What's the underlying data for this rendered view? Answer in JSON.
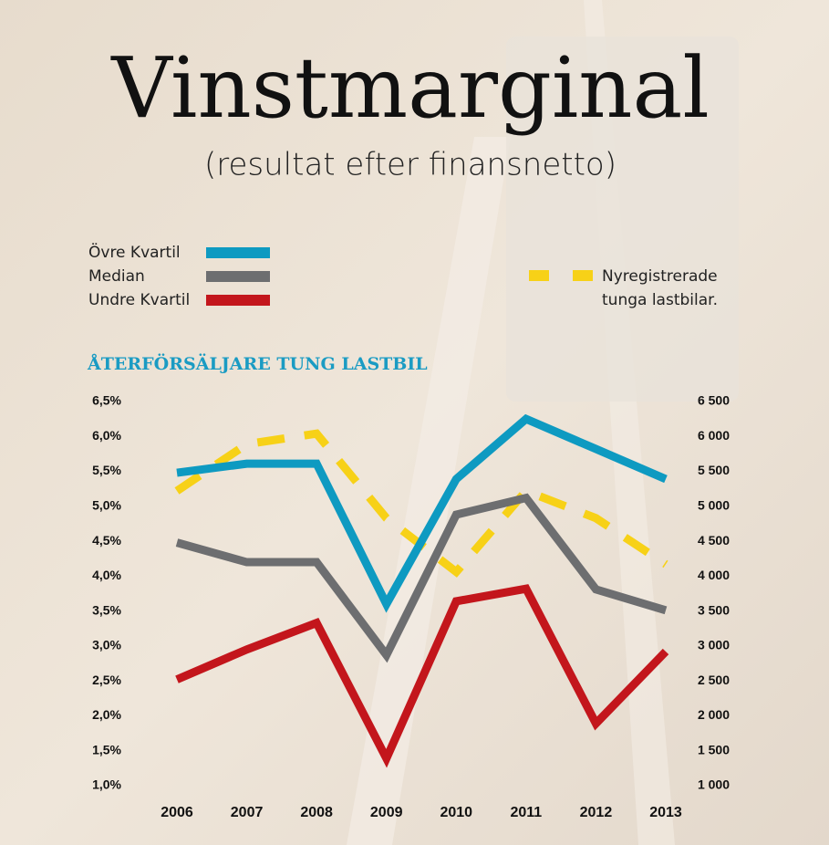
{
  "chart_data": {
    "type": "line",
    "title": "Vinstmarginal",
    "subtitle": "(resultat efter finansnetto)",
    "chart_title": "ÅTERFÖRSÄLJARE TUNG LASTBIL",
    "categories": [
      "2006",
      "2007",
      "2008",
      "2009",
      "2010",
      "2011",
      "2012",
      "2013"
    ],
    "series": [
      {
        "name": "Övre Kvartil",
        "color": "#0e9ac1",
        "style": "solid",
        "values": [
          5.48,
          5.61,
          5.61,
          3.6,
          5.39,
          6.25,
          5.82,
          5.39
        ]
      },
      {
        "name": "Median",
        "color": "#6d6e70",
        "style": "solid",
        "values": [
          4.48,
          4.2,
          4.2,
          2.87,
          4.88,
          5.12,
          3.81,
          3.51
        ]
      },
      {
        "name": "Undre Kvartil",
        "color": "#c3161c",
        "style": "solid",
        "values": [
          2.52,
          2.95,
          3.33,
          1.39,
          3.64,
          3.82,
          1.89,
          2.92
        ]
      },
      {
        "name": "Nyregistrerade tunga lastbilar.",
        "color": "#f7d117",
        "style": "dashed",
        "axis": "y2",
        "values": [
          5220,
          5890,
          6040,
          4830,
          4060,
          5220,
          4830,
          4170
        ]
      }
    ],
    "ylim": [
      1.0,
      6.5
    ],
    "yticks": [
      {
        "value": 1.0,
        "label": "1,0%"
      },
      {
        "value": 1.5,
        "label": "1,5%"
      },
      {
        "value": 2.0,
        "label": "2,0%"
      },
      {
        "value": 2.5,
        "label": "2,5%"
      },
      {
        "value": 3.0,
        "label": "3,0%"
      },
      {
        "value": 3.5,
        "label": "3,5%"
      },
      {
        "value": 4.0,
        "label": "4,0%"
      },
      {
        "value": 4.5,
        "label": "4,5%"
      },
      {
        "value": 5.0,
        "label": "5,0%"
      },
      {
        "value": 5.5,
        "label": "5,5%"
      },
      {
        "value": 6.0,
        "label": "6,0%"
      },
      {
        "value": 6.5,
        "label": "6,5%"
      }
    ],
    "y2lim": [
      1000,
      6500
    ],
    "y2ticks": [
      {
        "value": 1000,
        "label": "1 000"
      },
      {
        "value": 1500,
        "label": "1 500"
      },
      {
        "value": 2000,
        "label": "2 000"
      },
      {
        "value": 2500,
        "label": "2 500"
      },
      {
        "value": 3000,
        "label": "3 000"
      },
      {
        "value": 3500,
        "label": "3 500"
      },
      {
        "value": 4000,
        "label": "4 000"
      },
      {
        "value": 4500,
        "label": "4 500"
      },
      {
        "value": 5000,
        "label": "5 000"
      },
      {
        "value": 5500,
        "label": "5 500"
      },
      {
        "value": 6000,
        "label": "6 000"
      },
      {
        "value": 6500,
        "label": "6 500"
      }
    ],
    "grid": false
  }
}
